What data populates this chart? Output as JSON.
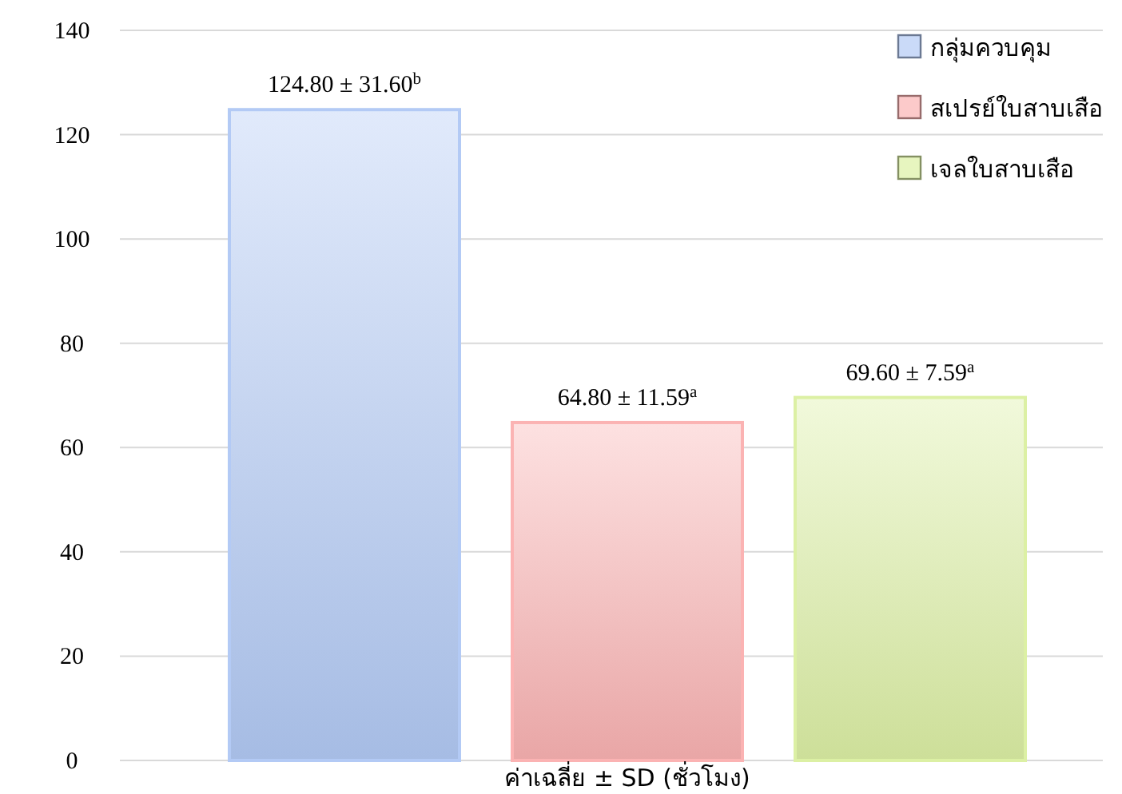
{
  "chart_data": {
    "type": "bar",
    "xlabel": "ค่าเฉลี่ย ± SD (ชั่วโมง)",
    "categories": [
      null
    ],
    "series": [
      {
        "name": "กลุ่มควบคุม",
        "color": "#b3caf5",
        "values": [
          124.8
        ],
        "value_labels": [
          "124.80 ± 31.60$^{b}$"
        ]
      },
      {
        "name": "สเปรย์ใบสาบเสือ",
        "color": "#fbb3b3",
        "values": [
          64.8
        ],
        "value_labels": [
          "64.80 ± 11.59$^{a}$"
        ]
      },
      {
        "name": "เจลใบสาบเสือ",
        "color": "#dcf0a4",
        "values": [
          69.6
        ],
        "value_labels": [
          "69.60 ± 7.59$^{a}$"
        ]
      }
    ],
    "ylim": [
      0,
      140
    ],
    "yticks": [
      0,
      20,
      40,
      60,
      80,
      100,
      120,
      140
    ],
    "grid": "y",
    "legend": "top right"
  }
}
